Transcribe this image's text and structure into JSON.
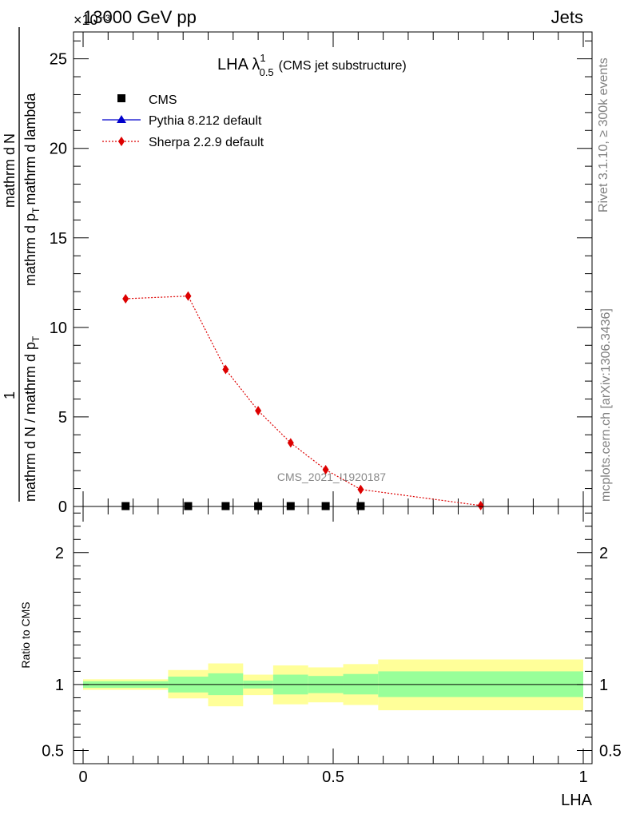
{
  "header": {
    "energy_label": "13000 GeV pp",
    "process_label": "Jets",
    "exponent_label": "×10⁻³"
  },
  "side_labels": {
    "rivet": "Rivet 3.1.10, ≥ 300k events",
    "mcplots": "mcplots.cern.ch [arXiv:1306.3436]"
  },
  "colors": {
    "cms": "#000000",
    "pythia": "#0000cc",
    "sherpa": "#dd0000",
    "band_inner": "#99ff99",
    "band_outer": "#ffff99"
  },
  "chart_data": [
    {
      "type": "line",
      "title": "LHA λ",
      "title_sup": "1",
      "title_sub": "0.5",
      "title_suffix": "(CMS jet substructure)",
      "watermark": "CMS_2021_I1920187",
      "ylabel_numerator": "1",
      "ylabel_denominator": "mathrm d N / mathrm d p",
      "ylabel_numerator_text": "mathrm d",
      "ylabel_numerator_n": "N",
      "ylabel_den2": "mathrm d p",
      "ylabel_den2_sub": "T",
      "ylabel_den2_tail": "mathrm d lambda",
      "ylabel_den1_sub": "T",
      "ylabel_den1_tail": "mathrm d p",
      "ylabel_den1_sub2": "T",
      "ylabel_den1_tail2": "mathrm d lambda",
      "ylim": [
        0,
        26.5
      ],
      "yticks": [
        0,
        5,
        10,
        15,
        20,
        25
      ],
      "ytick_labels": [
        "0",
        "5",
        "10",
        "15",
        "20",
        "25"
      ],
      "xlim": [
        0,
        1
      ],
      "legend": [
        "CMS",
        "Pythia 8.212 default",
        "Sherpa 2.2.9 default"
      ],
      "series": [
        {
          "name": "CMS",
          "x": [
            0.085,
            0.21,
            0.285,
            0.35,
            0.415,
            0.485,
            0.555
          ],
          "y": [
            0.02,
            0.02,
            0.02,
            0.02,
            0.02,
            0.02,
            0.02
          ]
        },
        {
          "name": "Sherpa 2.2.9 default",
          "x": [
            0.085,
            0.21,
            0.285,
            0.35,
            0.415,
            0.485,
            0.555,
            0.795
          ],
          "y": [
            11.6,
            11.75,
            7.65,
            5.35,
            3.55,
            2.05,
            0.95,
            0.05
          ]
        }
      ]
    },
    {
      "type": "area",
      "ylabel": "Ratio to CMS",
      "xlabel": "LHA",
      "ylim": [
        0.4,
        2.35
      ],
      "yticks": [
        0.5,
        1,
        2
      ],
      "ytick_labels": [
        "0.5",
        "1",
        "2"
      ],
      "xlim": [
        0,
        1
      ],
      "xticks": [
        0,
        0.5,
        1
      ],
      "xtick_labels": [
        "0",
        "0.5",
        "1"
      ],
      "reference": 1.0,
      "bins": [
        {
          "x0": 0.0,
          "x1": 0.17,
          "inner": [
            0.975,
            1.025
          ],
          "outer": [
            0.96,
            1.04
          ]
        },
        {
          "x0": 0.17,
          "x1": 0.25,
          "inner": [
            0.94,
            1.06
          ],
          "outer": [
            0.895,
            1.11
          ]
        },
        {
          "x0": 0.25,
          "x1": 0.32,
          "inner": [
            0.92,
            1.085
          ],
          "outer": [
            0.835,
            1.16
          ]
        },
        {
          "x0": 0.32,
          "x1": 0.38,
          "inner": [
            0.97,
            1.03
          ],
          "outer": [
            0.92,
            1.075
          ]
        },
        {
          "x0": 0.38,
          "x1": 0.45,
          "inner": [
            0.925,
            1.075
          ],
          "outer": [
            0.85,
            1.145
          ]
        },
        {
          "x0": 0.45,
          "x1": 0.52,
          "inner": [
            0.935,
            1.065
          ],
          "outer": [
            0.865,
            1.13
          ]
        },
        {
          "x0": 0.52,
          "x1": 0.59,
          "inner": [
            0.925,
            1.08
          ],
          "outer": [
            0.845,
            1.155
          ]
        },
        {
          "x0": 0.59,
          "x1": 1.0,
          "inner": [
            0.905,
            1.1
          ],
          "outer": [
            0.805,
            1.19
          ]
        }
      ]
    }
  ]
}
